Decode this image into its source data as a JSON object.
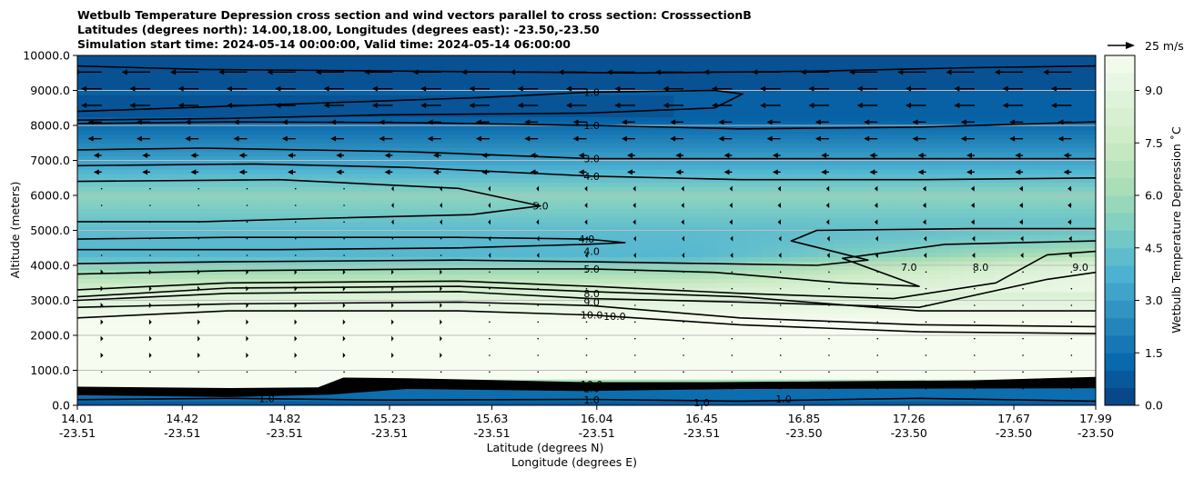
{
  "chart_data": {
    "type": "heatmap",
    "title_lines": [
      "Wetbulb Temperature Depression cross section and wind vectors parallel to cross section: CrosssectionB",
      "Latitudes (degrees north): 14.00,18.00, Longitudes (degrees east): -23.50,-23.50",
      "Simulation start time: 2024-05-14 00:00:00, Valid time: 2024-05-14 06:00:00"
    ],
    "ylabel": "Altitude (meters)",
    "xlabel_lat": "Latitude (degrees N)",
    "xlabel_lon": "Longitude (degrees E)",
    "ylim": [
      0,
      10000
    ],
    "y_ticks": [
      "0.0",
      "1000.0",
      "2000.0",
      "3000.0",
      "4000.0",
      "5000.0",
      "6000.0",
      "7000.0",
      "8000.0",
      "9000.0",
      "10000.0"
    ],
    "y_tick_values": [
      0,
      1000,
      2000,
      3000,
      4000,
      5000,
      6000,
      7000,
      8000,
      9000,
      10000
    ],
    "x_ticks_lat": [
      "14.01",
      "14.42",
      "14.82",
      "15.23",
      "15.63",
      "16.04",
      "16.45",
      "16.85",
      "17.26",
      "17.67",
      "17.99"
    ],
    "x_ticks_lon": [
      "-23.51",
      "-23.51",
      "-23.51",
      "-23.51",
      "-23.51",
      "-23.51",
      "-23.51",
      "-23.50",
      "-23.50",
      "-23.50",
      "-23.50"
    ],
    "x_tick_values": [
      14.01,
      14.42,
      14.82,
      15.23,
      15.63,
      16.04,
      16.45,
      16.85,
      17.26,
      17.67,
      17.99
    ],
    "xlim": [
      14.01,
      17.99
    ],
    "colorbar": {
      "label": "Wetbulb Temperature Depression ˚C",
      "range": [
        0,
        10
      ],
      "ticks": [
        "0.0",
        "1.5",
        "3.0",
        "4.5",
        "6.0",
        "7.5",
        "9.0"
      ],
      "tick_values": [
        0,
        1.5,
        3.0,
        4.5,
        6.0,
        7.5,
        9.0
      ]
    },
    "quiver_key": "25 m/s",
    "contour_labels": [
      {
        "text": "1.0",
        "lat": 16.02,
        "alt": 8950
      },
      {
        "text": "1.0",
        "lat": 16.02,
        "alt": 8000
      },
      {
        "text": "3.0",
        "lat": 16.02,
        "alt": 7050
      },
      {
        "text": "4.0",
        "lat": 16.02,
        "alt": 6550
      },
      {
        "text": "5.0",
        "lat": 15.82,
        "alt": 5700
      },
      {
        "text": "4.0",
        "lat": 16.0,
        "alt": 4750
      },
      {
        "text": "4.0",
        "lat": 16.02,
        "alt": 4400
      },
      {
        "text": "5.0",
        "lat": 16.02,
        "alt": 3900
      },
      {
        "text": "8.0",
        "lat": 16.02,
        "alt": 3200
      },
      {
        "text": "9.0",
        "lat": 16.02,
        "alt": 2950
      },
      {
        "text": "10.0",
        "lat": 16.02,
        "alt": 2580
      },
      {
        "text": "10.0",
        "lat": 16.11,
        "alt": 2550
      },
      {
        "text": "10.0",
        "lat": 16.02,
        "alt": 600
      },
      {
        "text": "2.0",
        "lat": 16.02,
        "alt": 480
      },
      {
        "text": "1.0",
        "lat": 16.02,
        "alt": 160
      },
      {
        "text": "1.0",
        "lat": 14.75,
        "alt": 200
      },
      {
        "text": "1.0",
        "lat": 16.45,
        "alt": 80
      },
      {
        "text": "1.0",
        "lat": 16.77,
        "alt": 180
      },
      {
        "text": "7.0",
        "lat": 17.26,
        "alt": 3950
      },
      {
        "text": "8.0",
        "lat": 17.54,
        "alt": 3950
      },
      {
        "text": "9.0",
        "lat": 17.93,
        "alt": 3950
      }
    ]
  }
}
